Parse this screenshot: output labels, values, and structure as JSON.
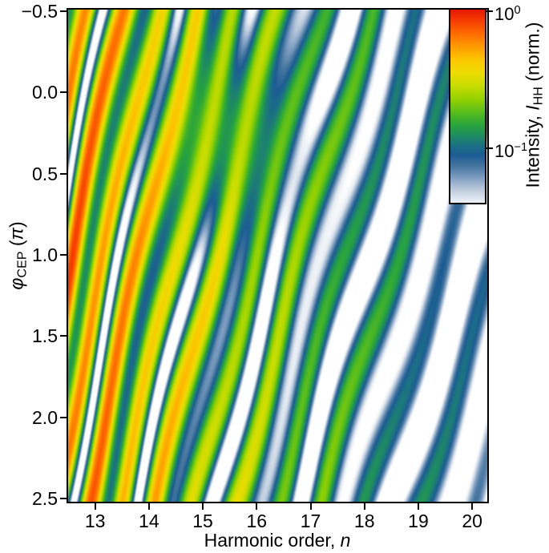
{
  "figure": {
    "background": "#ffffff",
    "xaxis": {
      "label_prefix": "Harmonic order, ",
      "label_italic": "n",
      "ticks": [
        {
          "value": 13,
          "label": "13"
        },
        {
          "value": 14,
          "label": "14"
        },
        {
          "value": 15,
          "label": "15"
        },
        {
          "value": 16,
          "label": "16"
        },
        {
          "value": 17,
          "label": "17"
        },
        {
          "value": 18,
          "label": "18"
        },
        {
          "value": 19,
          "label": "19"
        },
        {
          "value": 20,
          "label": "20"
        }
      ]
    },
    "yaxis": {
      "label_phi": "φ",
      "label_phi_sub": "CEP",
      "label_paren_open": " (",
      "label_pi": "π",
      "label_paren_close": ")",
      "ticks": [
        {
          "value": -0.5,
          "label": "−0.5"
        },
        {
          "value": 0.0,
          "label": "0.0"
        },
        {
          "value": 0.5,
          "label": "0.5"
        },
        {
          "value": 1.0,
          "label": "1.0"
        },
        {
          "value": 1.5,
          "label": "1.5"
        },
        {
          "value": 2.0,
          "label": "2.0"
        },
        {
          "value": 2.5,
          "label": "2.5"
        }
      ]
    },
    "colorbar": {
      "label_prefix": "Intensity, ",
      "label_italic": "I",
      "label_sub": "HH",
      "label_suffix": " (norm.)",
      "ticks": [
        {
          "value": 1.0,
          "mantissa": "10",
          "exponent": "0"
        },
        {
          "value": 0.1,
          "mantissa": "10",
          "exponent": "−1"
        }
      ]
    }
  },
  "chart_data": {
    "type": "heatmap",
    "title": "",
    "xlabel": "Harmonic order, n",
    "ylabel": "phi_CEP (pi)",
    "zlabel": "Intensity, I_HH (norm.)",
    "x_range": [
      12.5,
      20.28
    ],
    "y_range_pi": [
      -0.51,
      2.52
    ],
    "y_axis_inverted": true,
    "z_scale": "log10",
    "z_display_max": 1.0,
    "z_display_min": 0.04,
    "grid": false,
    "legend": "colorbar top-right, log scale 10^0 to 10^-1",
    "pattern_description": "Diagonal CEP interference fringes: bright ridges shift to lower harmonic order as phi_CEP increases (slope about -0.6 harmonic per pi). Peak intensity decays about one decade from n=13 (orange-red, ~0.7) to n=20 (blue, ~0.1). Ridge pairs (strong/weak) are separated by shallow blue minima, with deep white minima between pairs; gaps widen toward high harmonic orders.",
    "colormap_stops": [
      [
        0.0,
        "#e31700"
      ],
      [
        0.055,
        "#f53b00"
      ],
      [
        0.125,
        "#fe6c00"
      ],
      [
        0.195,
        "#ff9d00"
      ],
      [
        0.26,
        "#fcc700"
      ],
      [
        0.325,
        "#eedc00"
      ],
      [
        0.395,
        "#c6dc00"
      ],
      [
        0.465,
        "#93d100"
      ],
      [
        0.535,
        "#55bc1d"
      ],
      [
        0.6,
        "#28a43e"
      ],
      [
        0.655,
        "#1e8b63"
      ],
      [
        0.705,
        "#1b7084"
      ],
      [
        0.755,
        "#1c5c94"
      ],
      [
        0.81,
        "#44759e"
      ],
      [
        0.87,
        "#7e9dc1"
      ],
      [
        0.93,
        "#b9c9db"
      ],
      [
        0.99,
        "#e8edf3"
      ],
      [
        1.06,
        "#ffffff"
      ]
    ],
    "value_to_t": {
      "t0": 0.0083,
      "per_decade": 0.7095,
      "t_max": 1.06
    },
    "fringe_model": {
      "env_log10_at_13": -0.1,
      "env_log10_per_n": -0.125,
      "peak_spacing_at_13": 0.62,
      "peak_spacing_per_n": 0.055,
      "cep_slope_cycles_per_pi": 0.5,
      "phase_offset": 0.85,
      "main_amp": 0.92,
      "main_sigma": 0.09,
      "second_amp": 0.68,
      "second_sigma": 0.085,
      "floor_amp": 0.12,
      "floor_sigma": 0.16,
      "wobble_amp": 0.055,
      "wobble_n_period": 3.4,
      "wobble_phi_rate": 1.25,
      "wobble_phase": 0.9,
      "wash_center_n": 15.6,
      "wash_center_phi": 0.25,
      "wash_sigma_n": 1.3,
      "wash_sigma_phi": 0.62,
      "wash_amp": 0.55,
      "wash_level": 0.6
    }
  }
}
